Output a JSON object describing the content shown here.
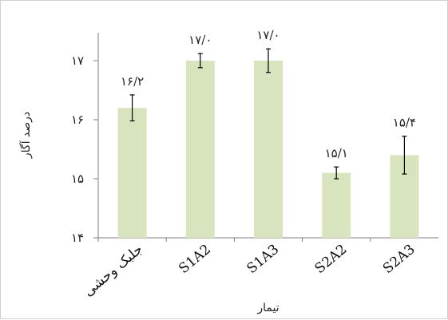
{
  "chart_data": {
    "type": "bar",
    "categories": [
      "جلبک وحشی",
      "S1A2",
      "S1A3",
      "S2A2",
      "S2A3"
    ],
    "values": [
      16.2,
      17.0,
      17.0,
      15.1,
      15.4
    ],
    "error": [
      0.22,
      0.12,
      0.2,
      0.1,
      0.32
    ],
    "data_labels": [
      "۱۶/۲",
      "۱۷/۰",
      "۱۷/۰",
      "۱۵/۱",
      "۱۵/۴"
    ],
    "y_ticks": [
      {
        "value": 14,
        "label": "۱۴"
      },
      {
        "value": 15,
        "label": "۱۵"
      },
      {
        "value": 16,
        "label": "۱۶"
      },
      {
        "value": 17,
        "label": "۱۷"
      }
    ],
    "ylim": [
      14,
      17.5
    ],
    "xlabel": "تیمار",
    "ylabel": "درصد آگار",
    "bar_color": "#d7e4bd",
    "grid": false
  }
}
